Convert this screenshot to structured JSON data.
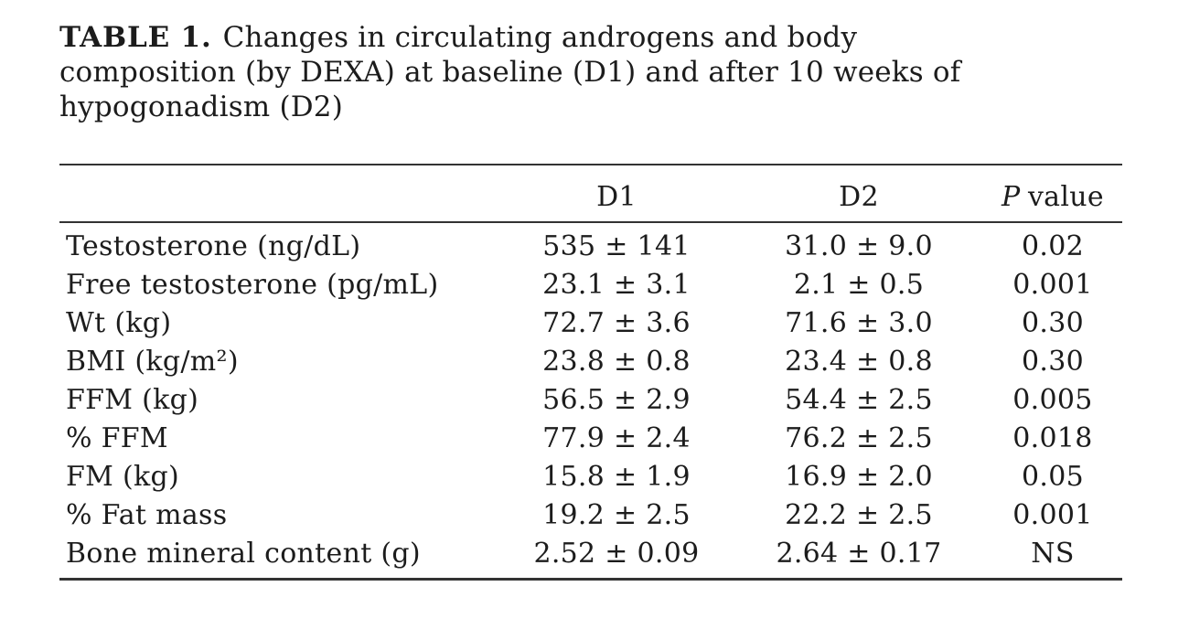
{
  "caption": {
    "label": "TABLE 1.",
    "line1": "Changes in circulating androgens and body",
    "line2": "composition (by DEXA) at baseline (D1) and after 10 weeks of",
    "line3": "hypogonadism (D2)"
  },
  "table": {
    "header": {
      "metric": "",
      "d1": "D1",
      "d2": "D2",
      "p_italic": "P",
      "p_rest": "value"
    },
    "rows": [
      {
        "label": "Testosterone (ng/dL)",
        "d1": "535 ± 141",
        "d2": "31.0 ± 9.0",
        "p": "0.02"
      },
      {
        "label": "Free testosterone (pg/mL)",
        "d1": "23.1 ± 3.1",
        "d2": "2.1 ± 0.5",
        "p": "0.001"
      },
      {
        "label": "Wt (kg)",
        "d1": "72.7 ± 3.6",
        "d2": "71.6 ± 3.0",
        "p": "0.30"
      },
      {
        "label": "BMI (kg/m²)",
        "d1": "23.8 ± 0.8",
        "d2": "23.4 ± 0.8",
        "p": "0.30"
      },
      {
        "label": "FFM (kg)",
        "d1": "56.5 ± 2.9",
        "d2": "54.4 ± 2.5",
        "p": "0.005"
      },
      {
        "label": "% FFM",
        "d1": "77.9 ± 2.4",
        "d2": "76.2 ± 2.5",
        "p": "0.018"
      },
      {
        "label": "FM (kg)",
        "d1": "15.8 ± 1.9",
        "d2": "16.9 ± 2.0",
        "p": "0.05"
      },
      {
        "label": "% Fat mass",
        "d1": "19.2 ± 2.5",
        "d2": "22.2 ± 2.5",
        "p": "0.001"
      },
      {
        "label": "Bone mineral content (g)",
        "d1": "2.52 ± 0.09",
        "d2": "2.64 ± 0.17",
        "p": "NS"
      }
    ]
  },
  "colors": {
    "background": "#ffffff",
    "text": "#1c1c1c",
    "rule": "#333333"
  }
}
